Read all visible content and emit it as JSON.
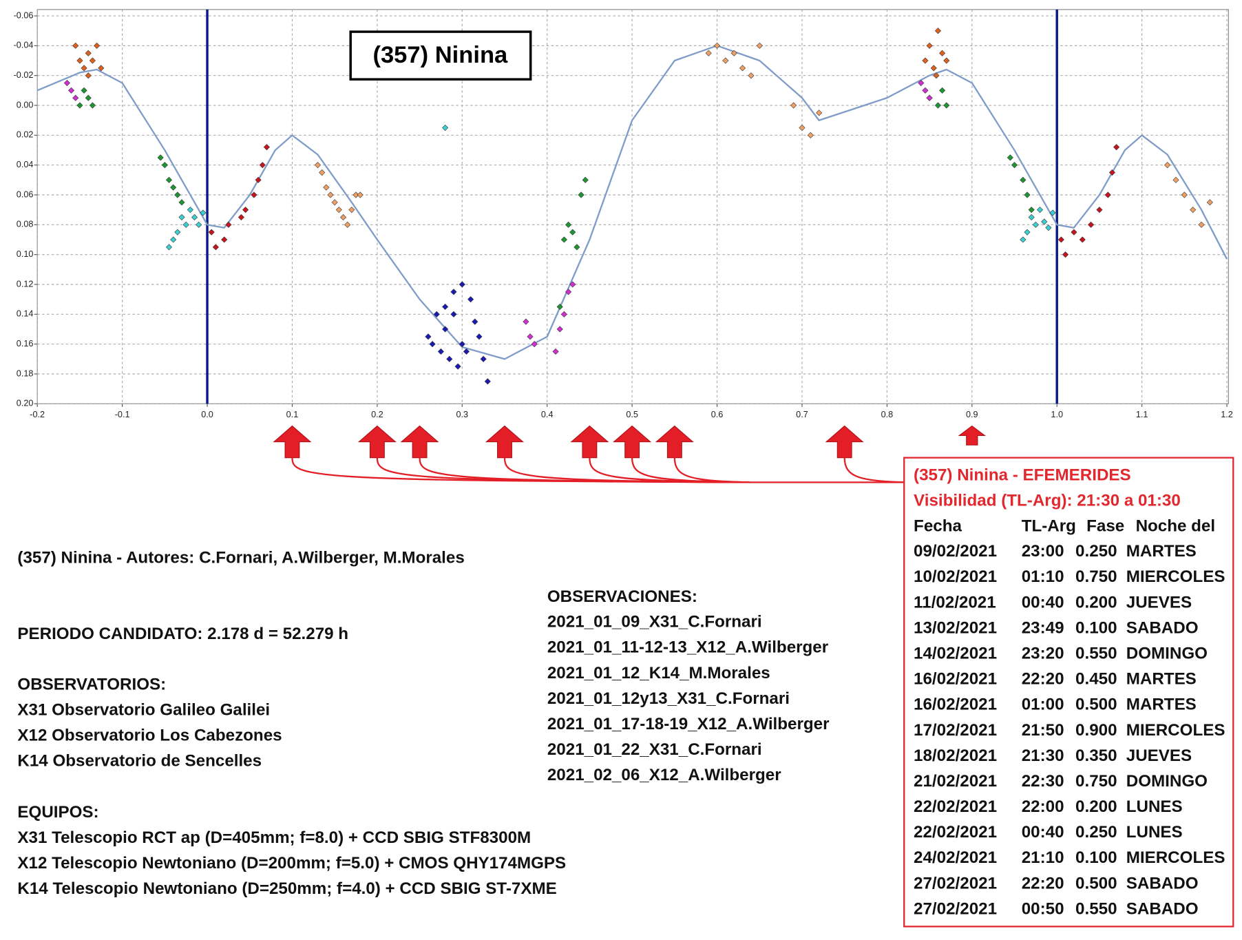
{
  "chart_data": {
    "type": "scatter",
    "title": "(357) Ninina",
    "xlim": [
      -0.2,
      1.2
    ],
    "xticks": [
      -0.2,
      -0.1,
      {
        "value": 0,
        "label": "0.0"
      },
      0.1,
      0.2,
      0.3,
      0.4,
      0.5,
      0.6,
      0.7,
      0.8,
      0.9,
      {
        "value": 1,
        "label": "1.0"
      },
      1.1,
      1.2
    ],
    "ylim": [
      -0.06,
      0.2
    ],
    "y_inverted": true,
    "yticks": [
      -0.06,
      -0.04,
      -0.02,
      {
        "value": 0,
        "label": "0.00"
      },
      0.02,
      0.04,
      0.06,
      0.08,
      {
        "value": 0.1,
        "label": "0.10"
      },
      0.12,
      0.14,
      0.16,
      0.18,
      {
        "value": 0.2,
        "label": "0.20"
      }
    ],
    "grid": true,
    "vlines": {
      "color": "#0a1a8c",
      "x": [
        0,
        1
      ]
    },
    "markers": {
      "color": "#e41e26",
      "x": [
        0.1,
        0.2,
        0.25,
        0.35,
        0.45,
        0.5,
        0.55,
        0.75,
        0.9
      ]
    },
    "fit": {
      "color": "#7f9cc8",
      "x": [
        -0.2,
        -0.15,
        -0.13,
        -0.1,
        -0.05,
        0,
        0.02,
        0.05,
        0.08,
        0.1,
        0.13,
        0.17,
        0.2,
        0.25,
        0.3,
        0.35,
        0.4,
        0.45,
        0.5,
        0.55,
        0.6,
        0.65,
        0.7,
        0.72,
        0.8,
        0.85,
        0.87,
        0.9,
        0.95,
        1,
        1.02,
        1.05,
        1.08,
        1.1,
        1.13,
        1.17,
        1.2
      ],
      "values": [
        -0.01,
        -0.022,
        -0.024,
        -0.015,
        0.03,
        0.08,
        0.082,
        0.06,
        0.03,
        0.02,
        0.033,
        0.065,
        0.09,
        0.13,
        0.162,
        0.17,
        0.155,
        0.09,
        0.01,
        -0.03,
        -0.04,
        -0.03,
        -0.005,
        0.01,
        -0.005,
        -0.02,
        -0.024,
        -0.015,
        0.03,
        0.08,
        0.082,
        0.06,
        0.03,
        0.02,
        0.033,
        0.07,
        0.103
      ]
    },
    "series": [
      {
        "color": "#e0601e",
        "x": [
          -0.155,
          -0.15,
          -0.145,
          -0.14,
          -0.135,
          -0.13,
          -0.14,
          -0.125,
          0.845,
          0.85,
          0.855,
          0.86,
          0.865,
          0.87,
          0.858
        ],
        "values": [
          -0.04,
          -0.03,
          -0.025,
          -0.035,
          -0.03,
          -0.04,
          -0.02,
          -0.025,
          -0.03,
          -0.04,
          -0.025,
          -0.05,
          -0.035,
          -0.03,
          -0.02
        ]
      },
      {
        "color": "#1e9632",
        "x": [
          -0.15,
          -0.145,
          -0.14,
          -0.135,
          -0.055,
          -0.05,
          -0.045,
          -0.04,
          -0.035,
          -0.03,
          0.42,
          0.425,
          0.43,
          0.435,
          0.44,
          0.445,
          0.415,
          0.85,
          0.86,
          0.865,
          0.87,
          0.945,
          0.95,
          0.96,
          0.965,
          0.97
        ],
        "values": [
          0,
          -0.01,
          -0.005,
          0,
          0.035,
          0.04,
          0.05,
          0.055,
          0.06,
          0.065,
          0.09,
          0.08,
          0.085,
          0.095,
          0.06,
          0.05,
          0.135,
          -0.005,
          0,
          -0.01,
          0,
          0.035,
          0.04,
          0.05,
          0.06,
          0.07
        ]
      },
      {
        "color": "#d22ed2",
        "x": [
          -0.165,
          -0.16,
          -0.155,
          0.375,
          0.38,
          0.385,
          0.41,
          0.415,
          0.42,
          0.425,
          0.43,
          0.84,
          0.845,
          0.85
        ],
        "values": [
          -0.015,
          -0.01,
          -0.005,
          0.145,
          0.155,
          0.16,
          0.165,
          0.15,
          0.14,
          0.125,
          0.12,
          -0.015,
          -0.01,
          -0.005
        ]
      },
      {
        "color": "#3ccfd2",
        "x": [
          -0.04,
          -0.035,
          -0.03,
          -0.025,
          -0.02,
          -0.015,
          -0.01,
          -0.005,
          -0.045,
          0.28,
          0.96,
          0.965,
          0.97,
          0.975,
          0.98,
          0.985,
          0.99,
          0.995
        ],
        "values": [
          0.09,
          0.085,
          0.075,
          0.08,
          0.07,
          0.075,
          0.08,
          0.072,
          0.095,
          0.015,
          0.09,
          0.085,
          0.075,
          0.08,
          0.07,
          0.078,
          0.082,
          0.072
        ]
      },
      {
        "color": "#c8141e",
        "x": [
          0.005,
          0.01,
          0.02,
          0.025,
          0.04,
          0.045,
          0.055,
          0.06,
          0.065,
          0.07,
          1.005,
          1.01,
          1.02,
          1.03,
          1.04,
          1.05,
          1.06,
          1.065,
          1.07
        ],
        "values": [
          0.085,
          0.095,
          0.09,
          0.08,
          0.075,
          0.07,
          0.06,
          0.05,
          0.04,
          0.028,
          0.09,
          0.1,
          0.085,
          0.09,
          0.08,
          0.07,
          0.06,
          0.045,
          0.028
        ]
      },
      {
        "color": "#f0a064",
        "x": [
          0.13,
          0.135,
          0.14,
          0.145,
          0.15,
          0.155,
          0.16,
          0.165,
          0.17,
          0.175,
          0.18,
          0.59,
          0.6,
          0.61,
          0.62,
          0.63,
          0.64,
          0.65,
          0.69,
          0.7,
          0.71,
          0.72,
          1.13,
          1.14,
          1.15,
          1.16,
          1.17,
          1.18
        ],
        "values": [
          0.04,
          0.045,
          0.055,
          0.06,
          0.065,
          0.07,
          0.075,
          0.08,
          0.07,
          0.06,
          0.06,
          -0.035,
          -0.04,
          -0.03,
          -0.035,
          -0.025,
          -0.02,
          -0.04,
          0,
          0.015,
          0.02,
          0.005,
          0.04,
          0.05,
          0.06,
          0.07,
          0.08,
          0.065
        ]
      },
      {
        "color": "#1a1ab4",
        "x": [
          0.26,
          0.265,
          0.27,
          0.275,
          0.28,
          0.285,
          0.29,
          0.295,
          0.3,
          0.305,
          0.31,
          0.315,
          0.32,
          0.325,
          0.33,
          0.28,
          0.29,
          0.3
        ],
        "values": [
          0.155,
          0.16,
          0.14,
          0.165,
          0.15,
          0.17,
          0.14,
          0.175,
          0.12,
          0.165,
          0.13,
          0.145,
          0.155,
          0.17,
          0.185,
          0.135,
          0.125,
          0.16
        ]
      }
    ]
  },
  "notes": {
    "authors": "(357) Ninina - Autores: C.Fornari, A.Wilberger, M.Morales",
    "period": "PERIODO CANDIDATO: 2.178 d = 52.279 h",
    "observatories": {
      "heading": "OBSERVATORIOS:",
      "items": [
        "X31 Observatorio Galileo Galilei",
        "X12 Observatorio Los Cabezones",
        "K14 Observatorio de Sencelles"
      ]
    },
    "equipment": {
      "heading": "EQUIPOS:",
      "items": [
        "X31 Telescopio RCT ap (D=405mm; f=8.0) + CCD SBIG STF8300M",
        "X12 Telescopio Newtoniano (D=200mm; f=5.0) + CMOS QHY174MGPS",
        "K14 Telescopio Newtoniano (D=250mm; f=4.0) + CCD SBIG ST-7XME"
      ]
    },
    "observations": {
      "heading": "OBSERVACIONES:",
      "items": [
        "2021_01_09_X31_C.Fornari",
        "2021_01_11-12-13_X12_A.Wilberger",
        "2021_01_12_K14_M.Morales",
        "2021_01_12y13_X31_C.Fornari",
        "2021_01_17-18-19_X12_A.Wilberger",
        "2021_01_22_X31_C.Fornari",
        "2021_02_06_X12_A.Wilberger"
      ]
    }
  },
  "ephemeris": {
    "title": "(357) Ninina - EFEMERIDES",
    "subtitle": "Visibilidad (TL-Arg): 21:30 a 01:30",
    "columns": [
      "Fecha",
      "TL-Arg",
      "Fase",
      "Noche del"
    ],
    "rows": [
      [
        "09/02/2021",
        "23:00",
        "0.250",
        "MARTES"
      ],
      [
        "10/02/2021",
        "01:10",
        "0.750",
        "MIERCOLES"
      ],
      [
        "11/02/2021",
        "00:40",
        "0.200",
        "JUEVES"
      ],
      [
        "13/02/2021",
        "23:49",
        "0.100",
        "SABADO"
      ],
      [
        "14/02/2021",
        "23:20",
        "0.550",
        "DOMINGO"
      ],
      [
        "16/02/2021",
        "22:20",
        "0.450",
        "MARTES"
      ],
      [
        "16/02/2021",
        "01:00",
        "0.500",
        "MARTES"
      ],
      [
        "17/02/2021",
        "21:50",
        "0.900",
        "MIERCOLES"
      ],
      [
        "18/02/2021",
        "21:30",
        "0.350",
        "JUEVES"
      ],
      [
        "21/02/2021",
        "22:30",
        "0.750",
        "DOMINGO"
      ],
      [
        "22/02/2021",
        "22:00",
        "0.200",
        "LUNES"
      ],
      [
        "22/02/2021",
        "00:40",
        "0.250",
        "LUNES"
      ],
      [
        "24/02/2021",
        "21:10",
        "0.100",
        "MIERCOLES"
      ],
      [
        "27/02/2021",
        "22:20",
        "0.500",
        "SABADO"
      ],
      [
        "27/02/2021",
        "00:50",
        "0.550",
        "SABADO"
      ]
    ]
  }
}
